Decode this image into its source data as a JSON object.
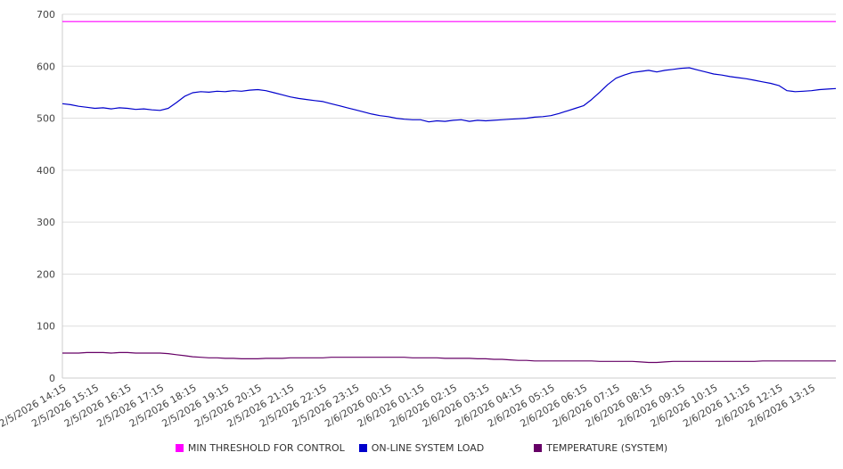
{
  "chart_data": {
    "type": "line",
    "ylim": [
      0,
      700
    ],
    "yticks": [
      0,
      100,
      200,
      300,
      400,
      500,
      600,
      700
    ],
    "grid": true,
    "legend_position": "bottom",
    "points_per_label": 4,
    "x_labels": [
      "2/5/2026 14:15",
      "2/5/2026 15:15",
      "2/5/2026 16:15",
      "2/5/2026 17:15",
      "2/5/2026 18:15",
      "2/5/2026 19:15",
      "2/5/2026 20:15",
      "2/5/2026 21:15",
      "2/5/2026 22:15",
      "2/5/2026 23:15",
      "2/6/2026 00:15",
      "2/6/2026 01:15",
      "2/6/2026 02:15",
      "2/6/2026 03:15",
      "2/6/2026 04:15",
      "2/6/2026 05:15",
      "2/6/2026 06:15",
      "2/6/2026 07:15",
      "2/6/2026 08:15",
      "2/6/2026 09:15",
      "2/6/2026 10:15",
      "2/6/2026 11:15",
      "2/6/2026 12:15",
      "2/6/2026 13:15"
    ],
    "series": [
      {
        "name": "MIN THRESHOLD FOR CONTROL",
        "color": "#ff00ff",
        "values": [
          686,
          686
        ]
      },
      {
        "name": "ON-LINE SYSTEM LOAD",
        "color": "#0000cc",
        "values": [
          528,
          526,
          523,
          521,
          519,
          520,
          518,
          520,
          519,
          517,
          518,
          516,
          515,
          519,
          530,
          542,
          549,
          551,
          550,
          552,
          551,
          553,
          552,
          554,
          555,
          553,
          549,
          545,
          541,
          538,
          536,
          534,
          532,
          528,
          524,
          520,
          516,
          512,
          508,
          505,
          503,
          500,
          498,
          497,
          497,
          493,
          495,
          494,
          496,
          497,
          494,
          496,
          495,
          496,
          497,
          498,
          499,
          500,
          502,
          503,
          505,
          509,
          514,
          519,
          524,
          536,
          550,
          565,
          577,
          583,
          588,
          590,
          592,
          589,
          592,
          594,
          596,
          597,
          593,
          589,
          585,
          583,
          580,
          578,
          576,
          573,
          570,
          567,
          563,
          553,
          551,
          552,
          553,
          555,
          556,
          557
        ]
      },
      {
        "name": "TEMPERATURE (SYSTEM)",
        "color": "#660066",
        "values": [
          48,
          48,
          48,
          49,
          49,
          49,
          48,
          49,
          49,
          48,
          48,
          48,
          48,
          47,
          45,
          43,
          41,
          40,
          39,
          39,
          38,
          38,
          37,
          37,
          37,
          38,
          38,
          38,
          39,
          39,
          39,
          39,
          39,
          40,
          40,
          40,
          40,
          40,
          40,
          40,
          40,
          40,
          40,
          39,
          39,
          39,
          39,
          38,
          38,
          38,
          38,
          37,
          37,
          36,
          36,
          35,
          34,
          34,
          33,
          33,
          33,
          33,
          33,
          33,
          33,
          33,
          32,
          32,
          32,
          32,
          32,
          31,
          30,
          30,
          31,
          32,
          32,
          32,
          32,
          32,
          32,
          32,
          32,
          32,
          32,
          32,
          33,
          33,
          33,
          33,
          33,
          33,
          33,
          33,
          33,
          33
        ]
      }
    ]
  }
}
